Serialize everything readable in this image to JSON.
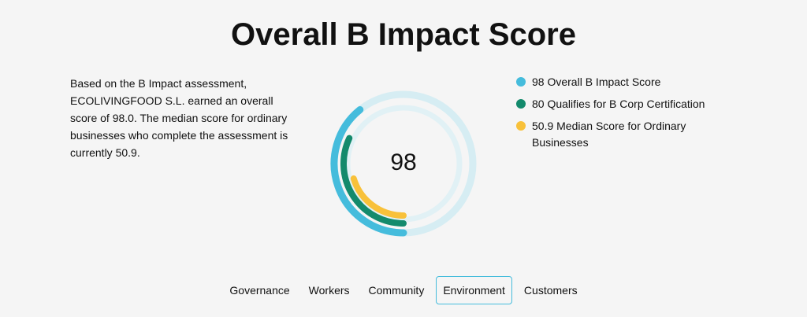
{
  "header": {
    "title": "Overall B Impact Score"
  },
  "description": "Based on the B Impact assessment, ECOLIVINGFOOD S.L. earned an overall score of 98.0. The median score for ordinary businesses who complete the assessment is currently 50.9.",
  "chart_data": {
    "type": "radial",
    "center_label": "98",
    "rlim": [
      0,
      250
    ],
    "series": [
      {
        "name": "Overall B Impact Score",
        "color": "#45bcdc",
        "value": 98
      },
      {
        "name": "Qualifies for B Corp Certification",
        "color": "#138a6c",
        "value": 80
      },
      {
        "name": "Median Score for Ordinary Businesses",
        "color": "#f8c13a",
        "value": 50.9
      }
    ]
  },
  "tabs": [
    {
      "label": "Governance",
      "selected": false
    },
    {
      "label": "Workers",
      "selected": false
    },
    {
      "label": "Community",
      "selected": false
    },
    {
      "label": "Environment",
      "selected": true
    },
    {
      "label": "Customers",
      "selected": false
    }
  ]
}
